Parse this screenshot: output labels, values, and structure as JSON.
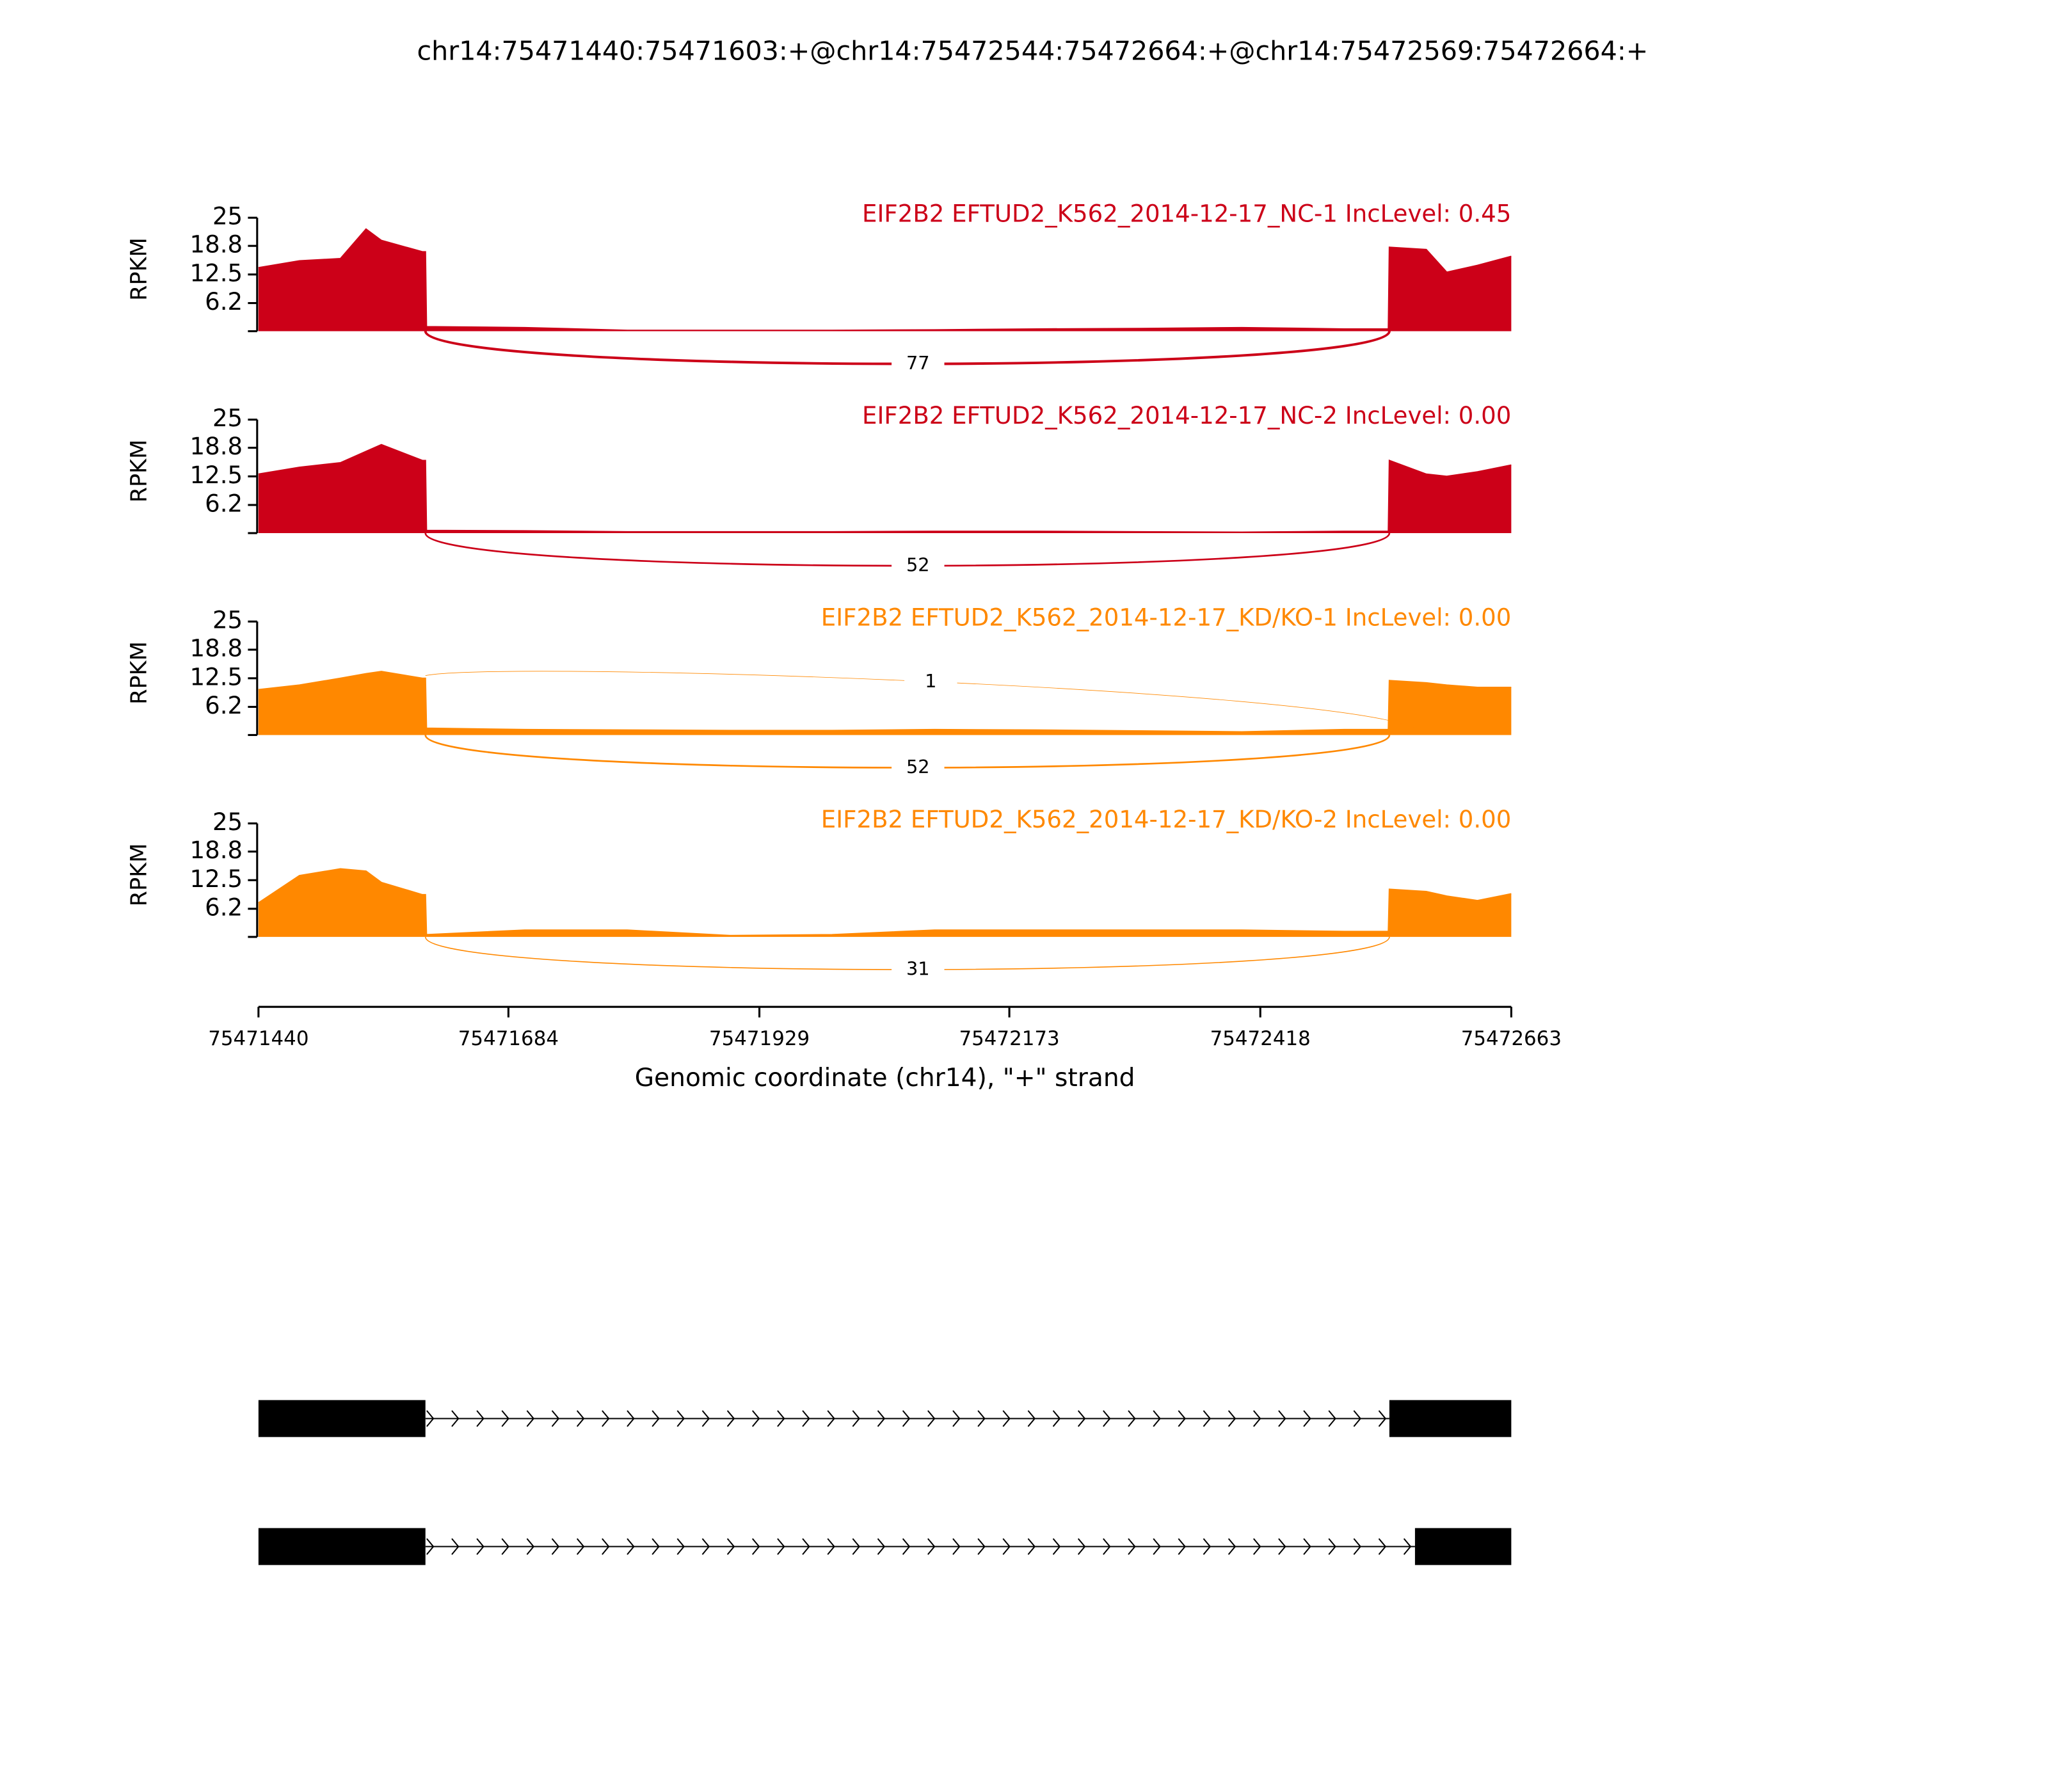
{
  "title": "chr14:75471440:75471603:+@chr14:75472544:75472664:+@chr14:75472569:75472664:+",
  "chart_data": [
    {
      "type": "area",
      "title": "EIF2B2 EFTUD2_K562_2014-12-17_NC-1 IncLevel: 0.45",
      "color": "#cc0018",
      "ylabel": "RPKM",
      "ylim": [
        0,
        25
      ],
      "yticks": [
        6.2,
        12.5,
        18.8,
        25
      ],
      "xlim": [
        75471440,
        75472663
      ],
      "x": [
        75471440,
        75471480,
        75471520,
        75471545,
        75471560,
        75471600,
        75471603,
        75471604,
        75471700,
        75471800,
        75471900,
        75472000,
        75472100,
        75472200,
        75472300,
        75472400,
        75472500,
        75472543,
        75472544,
        75472580,
        75472600,
        75472630,
        75472663
      ],
      "values": [
        14,
        15.5,
        16,
        22.5,
        20,
        17.5,
        17.5,
        1,
        0.8,
        0.2,
        0.2,
        0.2,
        0.3,
        0.5,
        0.6,
        0.8,
        0.5,
        0.5,
        18.5,
        18,
        13,
        14.5,
        16.5
      ],
      "junctions": [
        {
          "start": 75471603,
          "end": 75472544,
          "count": 77,
          "side": "below"
        }
      ]
    },
    {
      "type": "area",
      "title": "EIF2B2 EFTUD2_K562_2014-12-17_NC-2 IncLevel: 0.00",
      "color": "#cc0018",
      "ylabel": "RPKM",
      "ylim": [
        0,
        25
      ],
      "yticks": [
        6.2,
        12.5,
        18.8,
        25
      ],
      "xlim": [
        75471440,
        75472663
      ],
      "x": [
        75471440,
        75471480,
        75471520,
        75471545,
        75471560,
        75471600,
        75471603,
        75471604,
        75471700,
        75471800,
        75471900,
        75472000,
        75472100,
        75472200,
        75472300,
        75472400,
        75472500,
        75472543,
        75472544,
        75472580,
        75472600,
        75472630,
        75472663
      ],
      "values": [
        13,
        14.5,
        15.5,
        18,
        19.5,
        16,
        16,
        0.6,
        0.5,
        0.3,
        0.3,
        0.3,
        0.4,
        0.4,
        0.3,
        0.2,
        0.4,
        0.4,
        16,
        13,
        12.5,
        13.5,
        15
      ],
      "junctions": [
        {
          "start": 75471603,
          "end": 75472544,
          "count": 52,
          "side": "below"
        }
      ]
    },
    {
      "type": "area",
      "title": "EIF2B2 EFTUD2_K562_2014-12-17_KD/KO-1 IncLevel: 0.00",
      "color": "#ff8800",
      "ylabel": "RPKM",
      "ylim": [
        0,
        25
      ],
      "yticks": [
        6.2,
        12.5,
        18.8,
        25
      ],
      "xlim": [
        75471440,
        75472663
      ],
      "x": [
        75471440,
        75471480,
        75471520,
        75471545,
        75471560,
        75471600,
        75471603,
        75471604,
        75471700,
        75471800,
        75471900,
        75472000,
        75472100,
        75472200,
        75472300,
        75472400,
        75472500,
        75472543,
        75472544,
        75472580,
        75472600,
        75472630,
        75472663
      ],
      "values": [
        10,
        11,
        12.5,
        13.5,
        14,
        12.5,
        12.5,
        1.5,
        1.2,
        1.1,
        1,
        1,
        1.2,
        1.1,
        0.9,
        0.7,
        1.2,
        1.2,
        12,
        11.5,
        11,
        10.5,
        10.5
      ],
      "junctions": [
        {
          "start": 75471603,
          "end": 75472569,
          "count": 1,
          "side": "above"
        },
        {
          "start": 75471603,
          "end": 75472544,
          "count": 52,
          "side": "below"
        }
      ]
    },
    {
      "type": "area",
      "title": "EIF2B2 EFTUD2_K562_2014-12-17_KD/KO-2 IncLevel: 0.00",
      "color": "#ff8800",
      "ylabel": "RPKM",
      "ylim": [
        0,
        25
      ],
      "yticks": [
        6.2,
        12.5,
        18.8,
        25
      ],
      "xlim": [
        75471440,
        75472663
      ],
      "xticks": [
        75471440,
        75471684,
        75471929,
        75472173,
        75472418,
        75472663
      ],
      "xlabel": "Genomic coordinate (chr14), \"+\" strand",
      "x": [
        75471440,
        75471480,
        75471520,
        75471545,
        75471560,
        75471600,
        75471603,
        75471604,
        75471700,
        75471800,
        75471900,
        75472000,
        75472100,
        75472200,
        75472300,
        75472400,
        75472500,
        75472543,
        75472544,
        75472580,
        75472600,
        75472630,
        75472663
      ],
      "values": [
        7.5,
        13.5,
        15,
        14.5,
        12,
        9.3,
        9.3,
        0.5,
        1.5,
        1.5,
        0.3,
        0.5,
        1.5,
        1.5,
        1.5,
        1.5,
        1.2,
        1.2,
        10.5,
        10,
        9,
        8,
        9.5
      ],
      "junctions": [
        {
          "start": 75471603,
          "end": 75472544,
          "count": 31,
          "side": "below"
        }
      ]
    },
    {
      "type": "gene",
      "xlim": [
        75471440,
        75472663
      ],
      "transcripts": [
        {
          "exons": [
            [
              75471440,
              75471603
            ],
            [
              75472544,
              75472664
            ]
          ]
        },
        {
          "exons": [
            [
              75471440,
              75471603
            ],
            [
              75472569,
              75472664
            ]
          ]
        }
      ]
    }
  ]
}
